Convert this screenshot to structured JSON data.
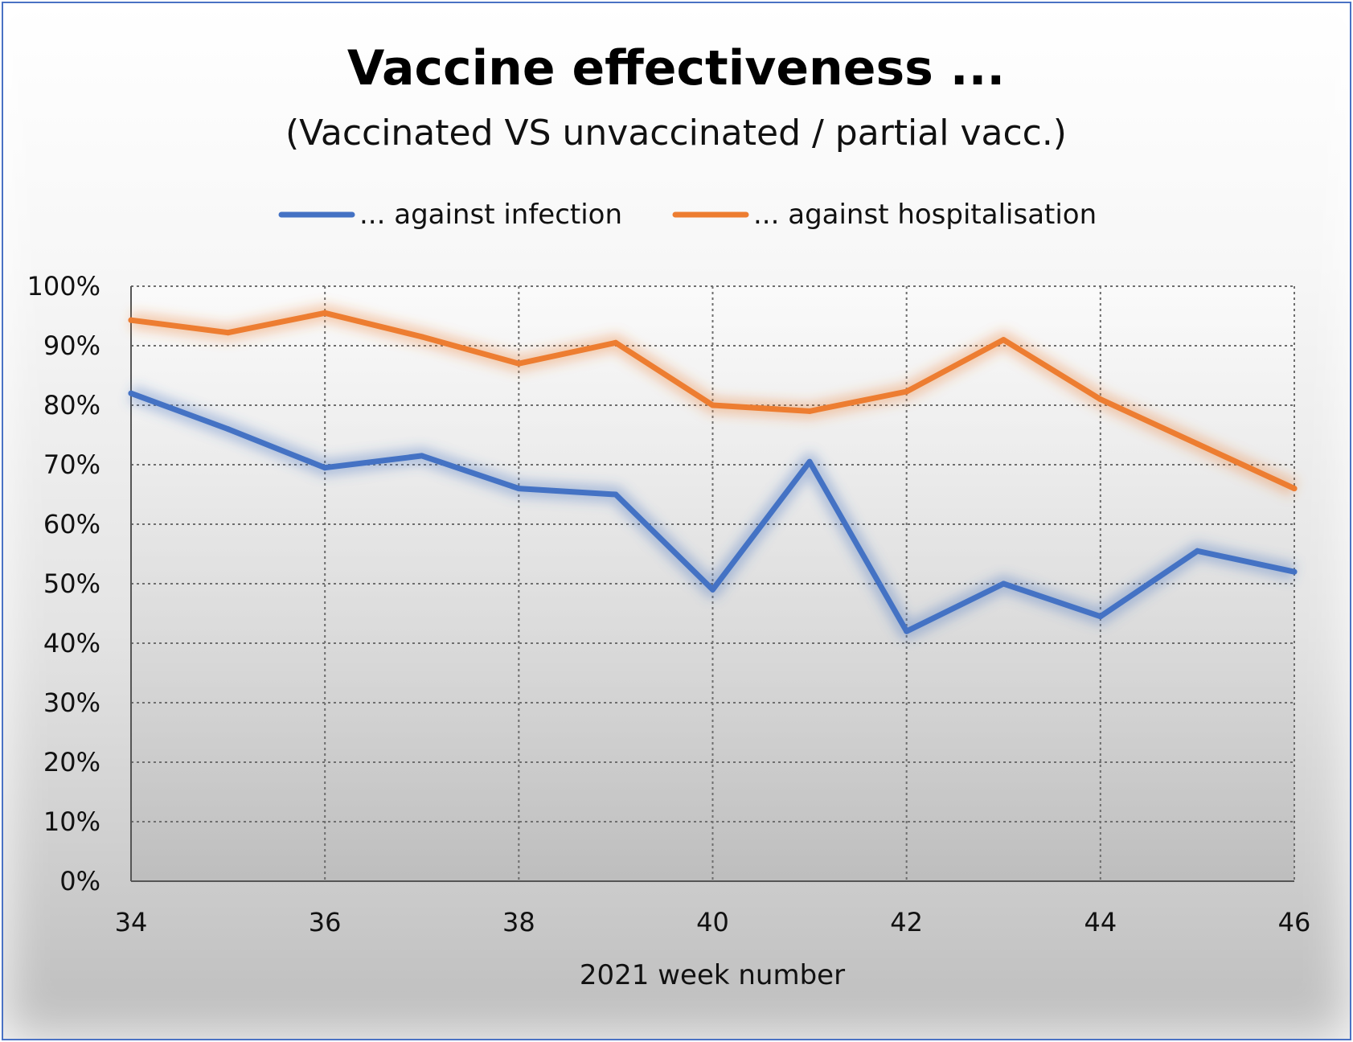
{
  "chart_data": {
    "type": "line",
    "title": "Vaccine effectiveness ...",
    "subtitle": "(Vaccinated VS unvaccinated / partial vacc.)",
    "xlabel": "2021 week number",
    "ylabel": "",
    "x": [
      34,
      35,
      36,
      37,
      38,
      39,
      40,
      41,
      42,
      43,
      44,
      45,
      46
    ],
    "x_ticks": [
      34,
      36,
      38,
      40,
      42,
      44,
      46
    ],
    "x_tick_labels": [
      "34",
      "36",
      "38",
      "40",
      "42",
      "44",
      "46"
    ],
    "xlim": [
      34,
      46
    ],
    "ylim": [
      0,
      1
    ],
    "y_ticks": [
      0,
      0.1,
      0.2,
      0.3,
      0.4,
      0.5,
      0.6,
      0.7,
      0.8,
      0.9,
      1.0
    ],
    "y_tick_labels": [
      "0%",
      "10%",
      "20%",
      "30%",
      "40%",
      "50%",
      "60%",
      "70%",
      "80%",
      "90%",
      "100%"
    ],
    "grid": true,
    "legend_position": "top",
    "series": [
      {
        "name": "... against infection",
        "color": "#4472c4",
        "values": [
          0.82,
          0.76,
          0.695,
          0.715,
          0.66,
          0.65,
          0.49,
          0.705,
          0.42,
          0.5,
          0.445,
          0.555,
          0.52
        ]
      },
      {
        "name": "... against hospitalisation",
        "color": "#ed7d31",
        "values": [
          0.943,
          0.922,
          0.955,
          0.915,
          0.87,
          0.905,
          0.8,
          0.79,
          0.823,
          0.91,
          0.81,
          0.735,
          0.66
        ]
      }
    ]
  }
}
